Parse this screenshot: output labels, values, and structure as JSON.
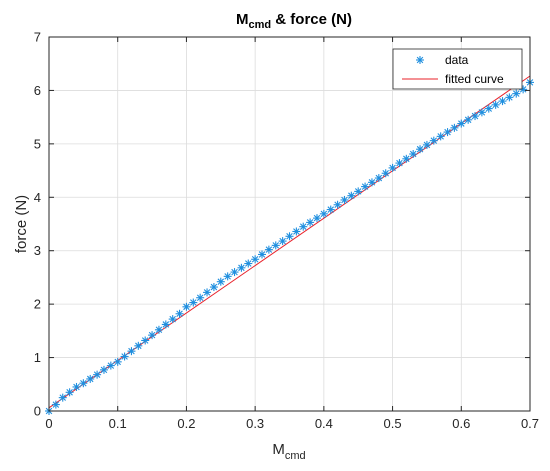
{
  "chart_data": {
    "type": "scatter",
    "title": {
      "main": "M",
      "sub": "cmd",
      "rest": " & force (N)"
    },
    "xlabel": {
      "main": "M",
      "sub": "cmd"
    },
    "ylabel": "force (N)",
    "xlim": [
      0,
      0.7
    ],
    "ylim": [
      0,
      7
    ],
    "x_ticks": [
      "0",
      "0.1",
      "0.2",
      "0.3",
      "0.4",
      "0.5",
      "0.6",
      "0.7"
    ],
    "y_ticks": [
      "0",
      "1",
      "2",
      "3",
      "4",
      "5",
      "6",
      "7"
    ],
    "grid": true,
    "legend_position": "top-right",
    "series": [
      {
        "name": "data",
        "marker": "asterisk",
        "color": "#1f8fdf",
        "x": [
          0.0,
          0.01,
          0.02,
          0.03,
          0.04,
          0.05,
          0.06,
          0.07,
          0.08,
          0.09,
          0.1,
          0.11,
          0.12,
          0.13,
          0.14,
          0.15,
          0.16,
          0.17,
          0.18,
          0.19,
          0.2,
          0.21,
          0.22,
          0.23,
          0.24,
          0.25,
          0.26,
          0.27,
          0.28,
          0.29,
          0.3,
          0.31,
          0.32,
          0.33,
          0.34,
          0.35,
          0.36,
          0.37,
          0.38,
          0.39,
          0.4,
          0.41,
          0.42,
          0.43,
          0.44,
          0.45,
          0.46,
          0.47,
          0.48,
          0.49,
          0.5,
          0.51,
          0.52,
          0.53,
          0.54,
          0.55,
          0.56,
          0.57,
          0.58,
          0.59,
          0.6,
          0.61,
          0.62,
          0.63,
          0.64,
          0.65,
          0.66,
          0.67,
          0.68,
          0.69,
          0.7
        ],
        "y": [
          0.0,
          0.12,
          0.25,
          0.35,
          0.45,
          0.52,
          0.6,
          0.68,
          0.77,
          0.85,
          0.92,
          1.02,
          1.12,
          1.22,
          1.32,
          1.42,
          1.52,
          1.62,
          1.72,
          1.82,
          1.95,
          2.03,
          2.12,
          2.22,
          2.32,
          2.42,
          2.52,
          2.6,
          2.68,
          2.76,
          2.84,
          2.93,
          3.02,
          3.1,
          3.18,
          3.27,
          3.36,
          3.45,
          3.53,
          3.61,
          3.69,
          3.77,
          3.86,
          3.95,
          4.03,
          4.11,
          4.2,
          4.28,
          4.36,
          4.45,
          4.55,
          4.64,
          4.72,
          4.81,
          4.9,
          4.98,
          5.06,
          5.14,
          5.22,
          5.3,
          5.38,
          5.45,
          5.52,
          5.59,
          5.66,
          5.73,
          5.8,
          5.87,
          5.94,
          6.02,
          6.15
        ]
      },
      {
        "name": "fitted curve",
        "type": "line",
        "color": "#e8212a",
        "x": [
          0.0,
          0.7
        ],
        "y": [
          0.06,
          6.27
        ]
      }
    ]
  }
}
